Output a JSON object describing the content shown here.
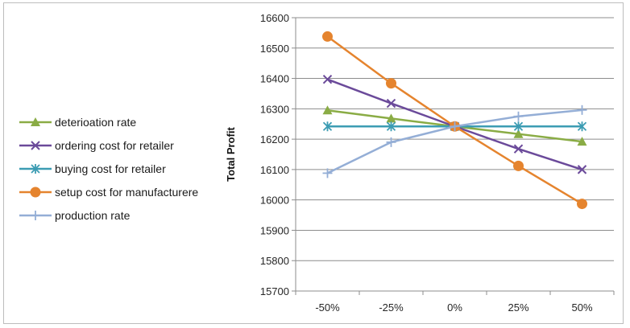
{
  "chart_data": {
    "type": "line",
    "categories": [
      "-50%",
      "-25%",
      "0%",
      "25%",
      "50%"
    ],
    "ylabel": "Total Profit",
    "xlabel": "",
    "ylim": [
      15700,
      16600
    ],
    "yticks": [
      16600,
      16500,
      16400,
      16300,
      16200,
      16100,
      16000,
      15900,
      15800,
      15700
    ],
    "grid": true,
    "legend_position": "left",
    "series": [
      {
        "name": "deterioation rate",
        "color": "#8aac45",
        "marker": "triangle",
        "values": [
          16295,
          16268,
          16242,
          16217,
          16192
        ]
      },
      {
        "name": "ordering cost for retailer",
        "color": "#6b4a9a",
        "marker": "x",
        "values": [
          16397,
          16318,
          16242,
          16168,
          16100
        ]
      },
      {
        "name": "buying cost for retailer",
        "color": "#3c9cb3",
        "marker": "star",
        "values": [
          16242,
          16242,
          16242,
          16242,
          16242
        ]
      },
      {
        "name": "setup cost for manufacturere",
        "color": "#e5842e",
        "marker": "circle",
        "values": [
          16538,
          16384,
          16242,
          16112,
          15987
        ]
      },
      {
        "name": "production rate",
        "color": "#94aed6",
        "marker": "plus",
        "values": [
          16088,
          16190,
          16242,
          16275,
          16296
        ]
      }
    ]
  }
}
